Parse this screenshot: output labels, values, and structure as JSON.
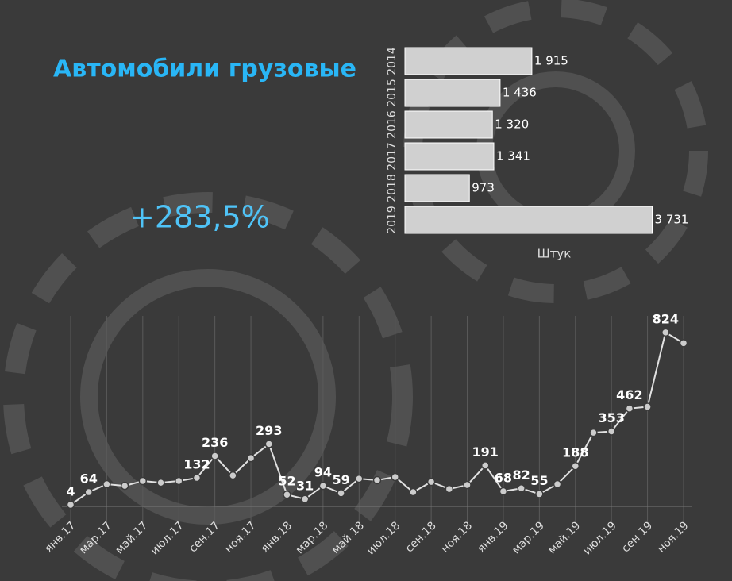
{
  "title": "Автомобили грузовые",
  "annotation": "+283,5%",
  "chart_data": [
    {
      "type": "hbar",
      "categories": [
        "2014",
        "2015",
        "2016",
        "2017",
        "2018",
        "2019"
      ],
      "values": [
        1915,
        1436,
        1320,
        1341,
        973,
        3731
      ],
      "value_labels": [
        "1 915",
        "1 436",
        "1 320",
        "1 341",
        "973",
        "3 731"
      ],
      "xlabel": "Штук",
      "xlim": [
        0,
        4000
      ],
      "color": "#d0d0d0"
    },
    {
      "type": "line",
      "categories": [
        "янв.17",
        null,
        "мар.17",
        null,
        "май.17",
        null,
        "июл.17",
        null,
        "сен.17",
        null,
        "ноя.17",
        null,
        "янв.18",
        null,
        "мар.18",
        null,
        "май.18",
        null,
        "июл.18",
        null,
        "сен.18",
        null,
        "ноя.18",
        null,
        "янв.19",
        null,
        "мар.19",
        null,
        "май.19",
        null,
        "июл.19",
        null,
        "сен.19",
        null,
        "ноя.19"
      ],
      "values": [
        4,
        64,
        102,
        94,
        117,
        109,
        117,
        132,
        236,
        143,
        226,
        293,
        52,
        31,
        94,
        59,
        128,
        121,
        136,
        64,
        113,
        79,
        98,
        191,
        68,
        82,
        55,
        102,
        188,
        347,
        353,
        462,
        470,
        824,
        773
      ],
      "value_labels": [
        "4",
        "64",
        null,
        null,
        null,
        null,
        null,
        "132",
        "236",
        null,
        null,
        "293",
        "52",
        "31",
        "94",
        "59",
        null,
        null,
        null,
        null,
        null,
        null,
        null,
        "191",
        "68",
        "82",
        "55",
        null,
        "188",
        null,
        "353",
        "462",
        null,
        "824",
        null
      ],
      "ylim": [
        0,
        880
      ],
      "color": "#e0e0e0",
      "grid": true
    }
  ]
}
